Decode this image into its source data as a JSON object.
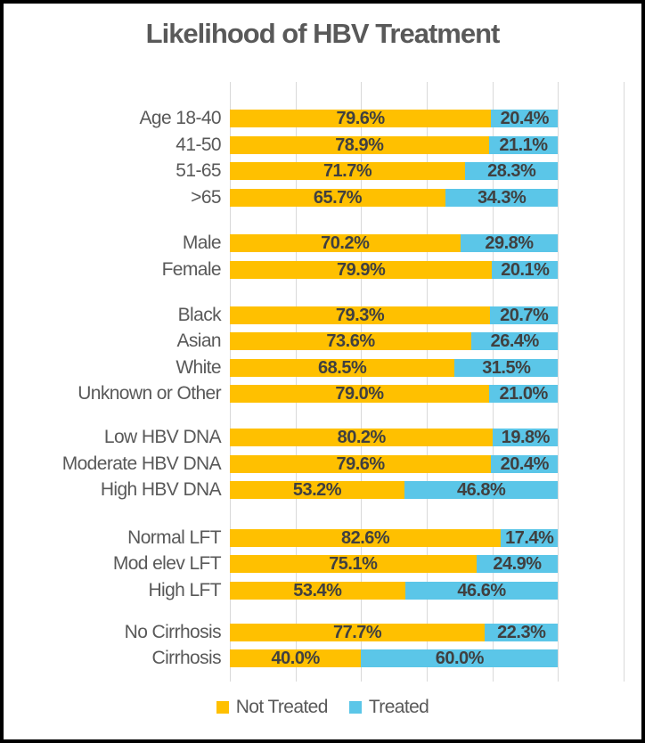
{
  "title": "Likelihood of HBV Treatment",
  "colors": {
    "not_treated": "#FFC000",
    "treated": "#5BC6E8",
    "gridline": "#D9D9D9",
    "title_text": "#595959",
    "category_text": "#595959",
    "value_text": "#404040",
    "frame": "#000000"
  },
  "legend": {
    "items": [
      {
        "label": "Not Treated",
        "color": "#FFC000"
      },
      {
        "label": "Treated",
        "color": "#5BC6E8"
      }
    ]
  },
  "chart_data": {
    "type": "bar",
    "orientation": "horizontal",
    "stacked": true,
    "title": "Likelihood of HBV Treatment",
    "unit": "%",
    "value_format": "one_decimal_percent",
    "series": [
      "Not Treated",
      "Treated"
    ],
    "axis": {
      "min": 0,
      "max": 120,
      "gridline_step": 20,
      "grid": true
    },
    "legend_position": "bottom",
    "groups": [
      {
        "rows": [
          {
            "label": "Age 18-40",
            "values": [
              79.6,
              20.4
            ]
          },
          {
            "label": "41-50",
            "values": [
              78.9,
              21.1
            ]
          },
          {
            "label": "51-65",
            "values": [
              71.7,
              28.3
            ]
          },
          {
            "label": ">65",
            "values": [
              65.7,
              34.3
            ]
          }
        ]
      },
      {
        "rows": [
          {
            "label": "Male",
            "values": [
              70.2,
              29.8
            ]
          },
          {
            "label": "Female",
            "values": [
              79.9,
              20.1
            ]
          }
        ]
      },
      {
        "rows": [
          {
            "label": "Black",
            "values": [
              79.3,
              20.7
            ]
          },
          {
            "label": "Asian",
            "values": [
              73.6,
              26.4
            ]
          },
          {
            "label": "White",
            "values": [
              68.5,
              31.5
            ]
          },
          {
            "label": "Unknown or Other",
            "values": [
              79.0,
              21.0
            ]
          }
        ]
      },
      {
        "rows": [
          {
            "label": "Low HBV DNA",
            "values": [
              80.2,
              19.8
            ]
          },
          {
            "label": "Moderate HBV DNA",
            "values": [
              79.6,
              20.4
            ]
          },
          {
            "label": "High HBV DNA",
            "values": [
              53.2,
              46.8
            ]
          }
        ]
      },
      {
        "rows": [
          {
            "label": "Normal LFT",
            "values": [
              82.6,
              17.4
            ]
          },
          {
            "label": "Mod elev LFT",
            "values": [
              75.1,
              24.9
            ]
          },
          {
            "label": "High LFT",
            "values": [
              53.4,
              46.6
            ]
          }
        ]
      },
      {
        "rows": [
          {
            "label": "No Cirrhosis",
            "values": [
              77.7,
              22.3
            ]
          },
          {
            "label": "Cirrhosis",
            "values": [
              40.0,
              60.0
            ]
          }
        ]
      }
    ]
  }
}
